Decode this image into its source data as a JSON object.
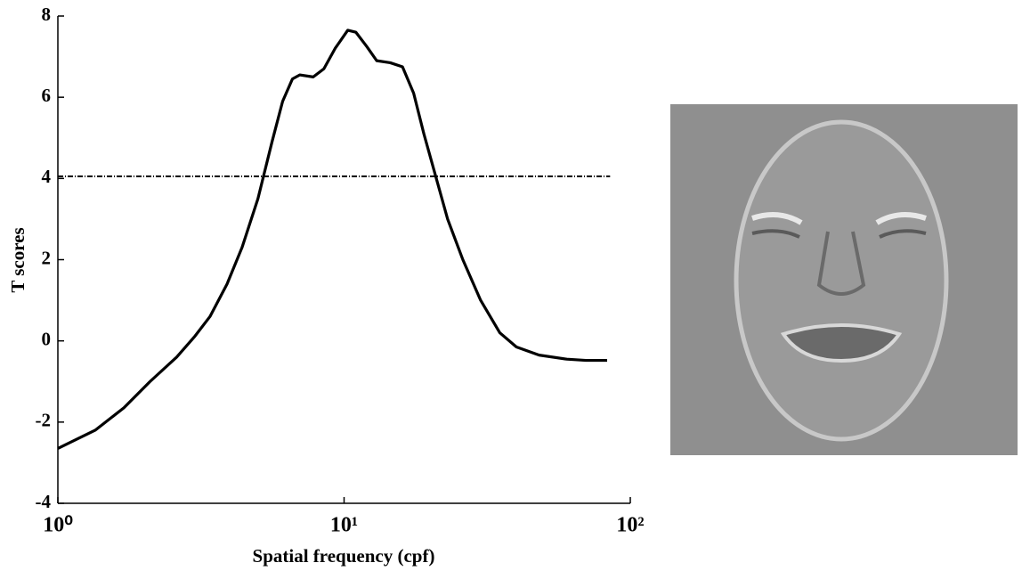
{
  "chart_data": {
    "type": "line",
    "xlabel": "Spatial frequency (cpf)",
    "ylabel": "T scores",
    "xscale": "log",
    "xlim": [
      1,
      100
    ],
    "xticks": [
      {
        "value": 1,
        "label": "10⁰"
      },
      {
        "value": 10,
        "label": "10¹"
      },
      {
        "value": 100,
        "label": "10²"
      }
    ],
    "ylim": [
      -4,
      8
    ],
    "yticks": [
      -4,
      -2,
      0,
      2,
      4,
      6,
      8
    ],
    "color": "#000000",
    "x": [
      1,
      1.35,
      1.7,
      2.1,
      2.6,
      3.0,
      3.4,
      3.9,
      4.4,
      5.0,
      5.6,
      6.1,
      6.6,
      7.0,
      7.8,
      8.5,
      9.3,
      10.3,
      11,
      12,
      13,
      14.5,
      16,
      17.5,
      19,
      21,
      23,
      26,
      30,
      35,
      40,
      48,
      60,
      70,
      83
    ],
    "values": [
      -2.65,
      -2.2,
      -1.65,
      -1.0,
      -0.4,
      0.1,
      0.6,
      1.4,
      2.3,
      3.5,
      4.9,
      5.9,
      6.45,
      6.55,
      6.5,
      6.7,
      7.2,
      7.65,
      7.6,
      7.25,
      6.9,
      6.85,
      6.75,
      6.1,
      5.1,
      4.0,
      3.0,
      2.0,
      1.0,
      0.2,
      -0.15,
      -0.35,
      -0.45,
      -0.48,
      -0.48
    ],
    "reference_line": {
      "y": 4.05,
      "x": [
        1,
        85
      ]
    }
  }
}
